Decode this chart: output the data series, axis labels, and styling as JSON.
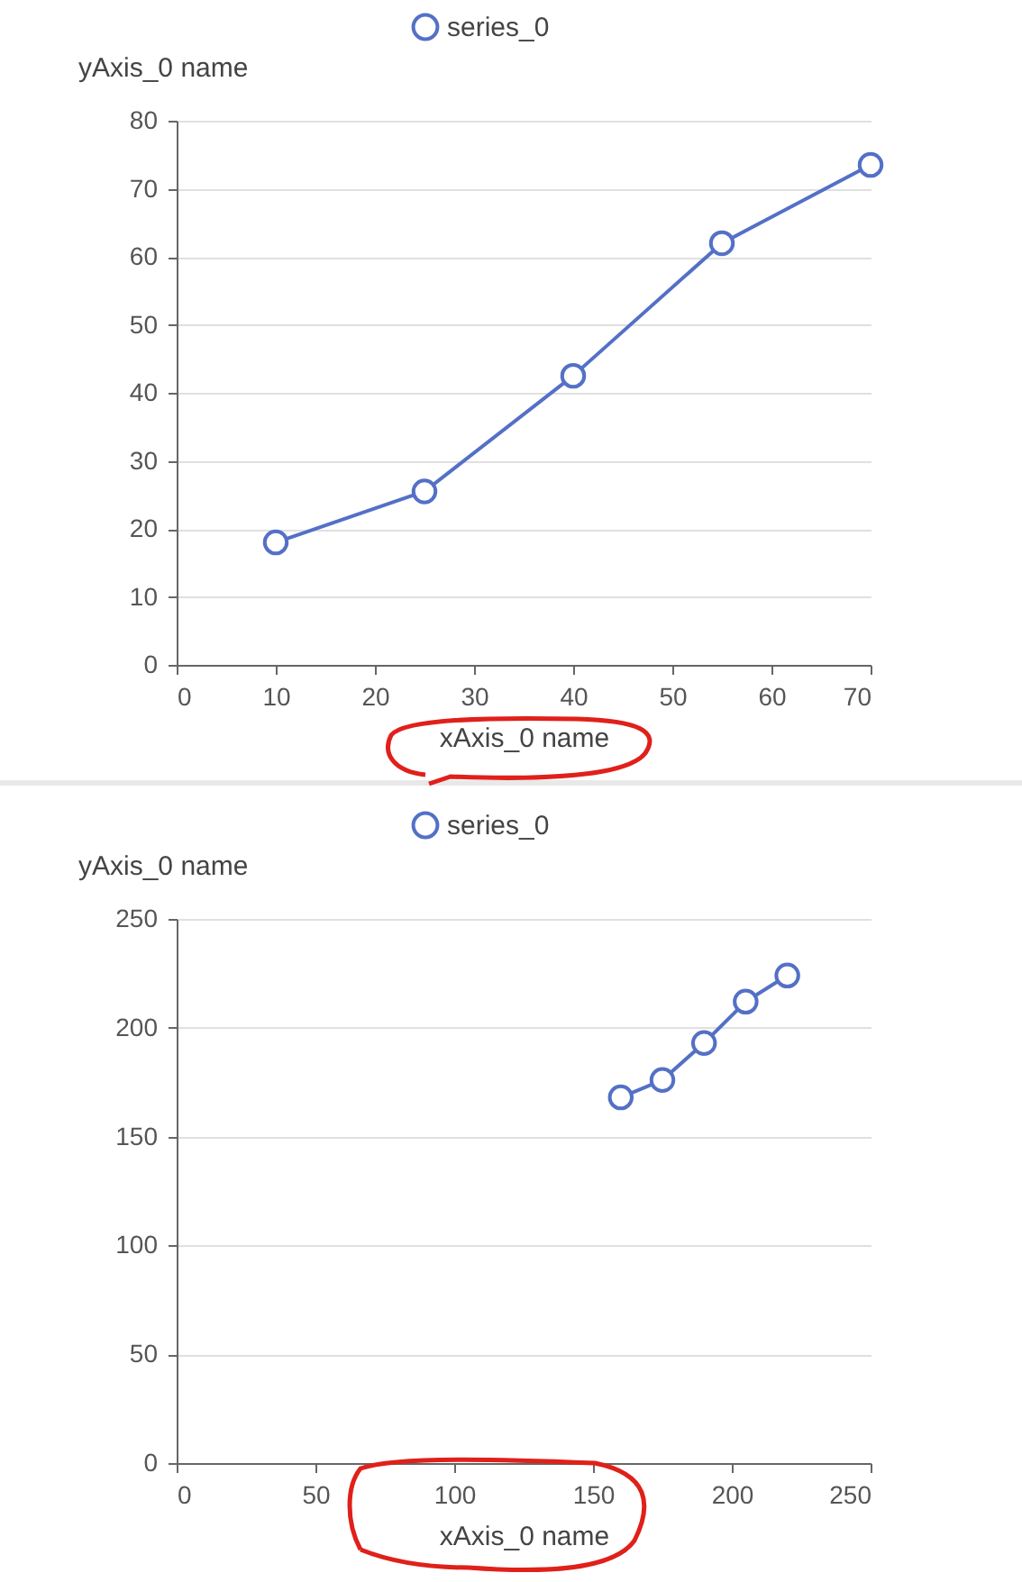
{
  "chart_data": [
    {
      "type": "line",
      "xlabel": "xAxis_0 name",
      "ylabel": "yAxis_0 name",
      "x": [
        10,
        25,
        40,
        55,
        70
      ],
      "series": [
        {
          "name": "series_0",
          "color": "#5470c6",
          "values": [
            18,
            25.5,
            42.5,
            62,
            73.5
          ]
        }
      ],
      "xlim": [
        0,
        70
      ],
      "xticks": [
        0,
        10,
        20,
        30,
        40,
        50,
        60,
        70
      ],
      "ylim": [
        0,
        80
      ],
      "yticks": [
        0,
        10,
        20,
        30,
        40,
        50,
        60,
        70,
        80
      ],
      "grid": "y",
      "legend": "top",
      "marker": "circle"
    },
    {
      "type": "line",
      "xlabel": "xAxis_0 name",
      "ylabel": "yAxis_0 name",
      "x": [
        160,
        175,
        190,
        205,
        220
      ],
      "series": [
        {
          "name": "series_0",
          "color": "#5470c6",
          "values": [
            168,
            176,
            193,
            212,
            224
          ]
        }
      ],
      "xlim": [
        0,
        250
      ],
      "xticks": [
        0,
        50,
        100,
        150,
        200,
        250
      ],
      "ylim": [
        0,
        250
      ],
      "yticks": [
        0,
        50,
        100,
        150,
        200,
        250
      ],
      "grid": "y",
      "legend": "top",
      "marker": "circle"
    }
  ]
}
